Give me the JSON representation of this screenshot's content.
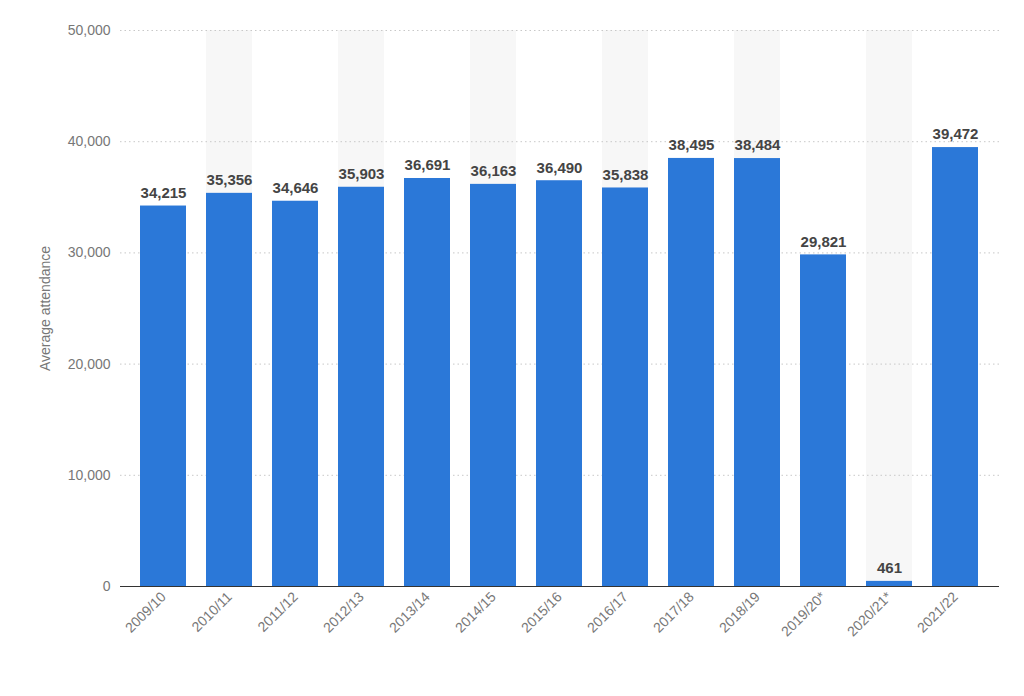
{
  "chart_data": {
    "type": "bar",
    "y_label": "Average attendance",
    "categories": [
      "2009/10",
      "2010/11",
      "2011/12",
      "2012/13",
      "2013/14",
      "2014/15",
      "2015/16",
      "2016/17",
      "2017/18",
      "2018/19",
      "2019/20*",
      "2020/21*",
      "2021/22"
    ],
    "values": [
      34215,
      35356,
      34646,
      35903,
      36691,
      36163,
      36490,
      35838,
      38495,
      38484,
      29821,
      461,
      39472
    ],
    "value_labels": [
      "34,215",
      "35,356",
      "34,646",
      "35,903",
      "36,691",
      "36,163",
      "36,490",
      "35,838",
      "38,495",
      "38,484",
      "29,821",
      "461",
      "39,472"
    ],
    "color": "#2b78d8",
    "ylim": [
      0,
      50000
    ],
    "yticks": [
      0,
      {
        "value": 10000,
        "label": "10,000"
      },
      {
        "value": 20000,
        "label": "20,000"
      },
      {
        "value": 30000,
        "label": "30,000"
      },
      {
        "value": 40000,
        "label": "40,000"
      },
      {
        "value": 50000,
        "label": "50,000"
      }
    ],
    "grid": true,
    "data_labels": true
  }
}
